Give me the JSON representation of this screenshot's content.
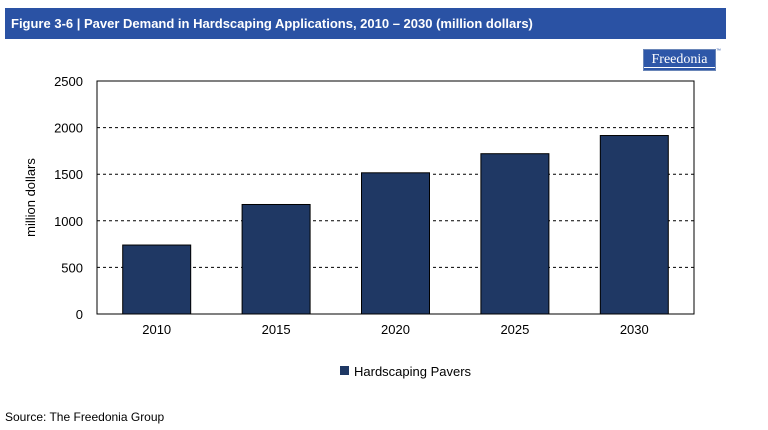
{
  "title": "Figure 3-6 | Paver Demand in Hardscaping Applications, 2010 – 2030 (million dollars)",
  "logo_text": "Freedonia",
  "source": "Source: The Freedonia Group",
  "colors": {
    "title_bar": "#2a52a4",
    "bar": "#1f3864",
    "grid": "#000000"
  },
  "chart_data": {
    "type": "bar",
    "categories": [
      "2010",
      "2015",
      "2020",
      "2025",
      "2030"
    ],
    "series": [
      {
        "name": "Hardscaping Pavers",
        "values": [
          740,
          1175,
          1515,
          1720,
          1915
        ]
      }
    ],
    "ylabel": "million dollars",
    "xlabel": "",
    "ylim": [
      0,
      2500
    ],
    "yticks": [
      0,
      500,
      1000,
      1500,
      2000,
      2500
    ],
    "grid": "horizontal dashed",
    "legend": "bottom-center"
  }
}
